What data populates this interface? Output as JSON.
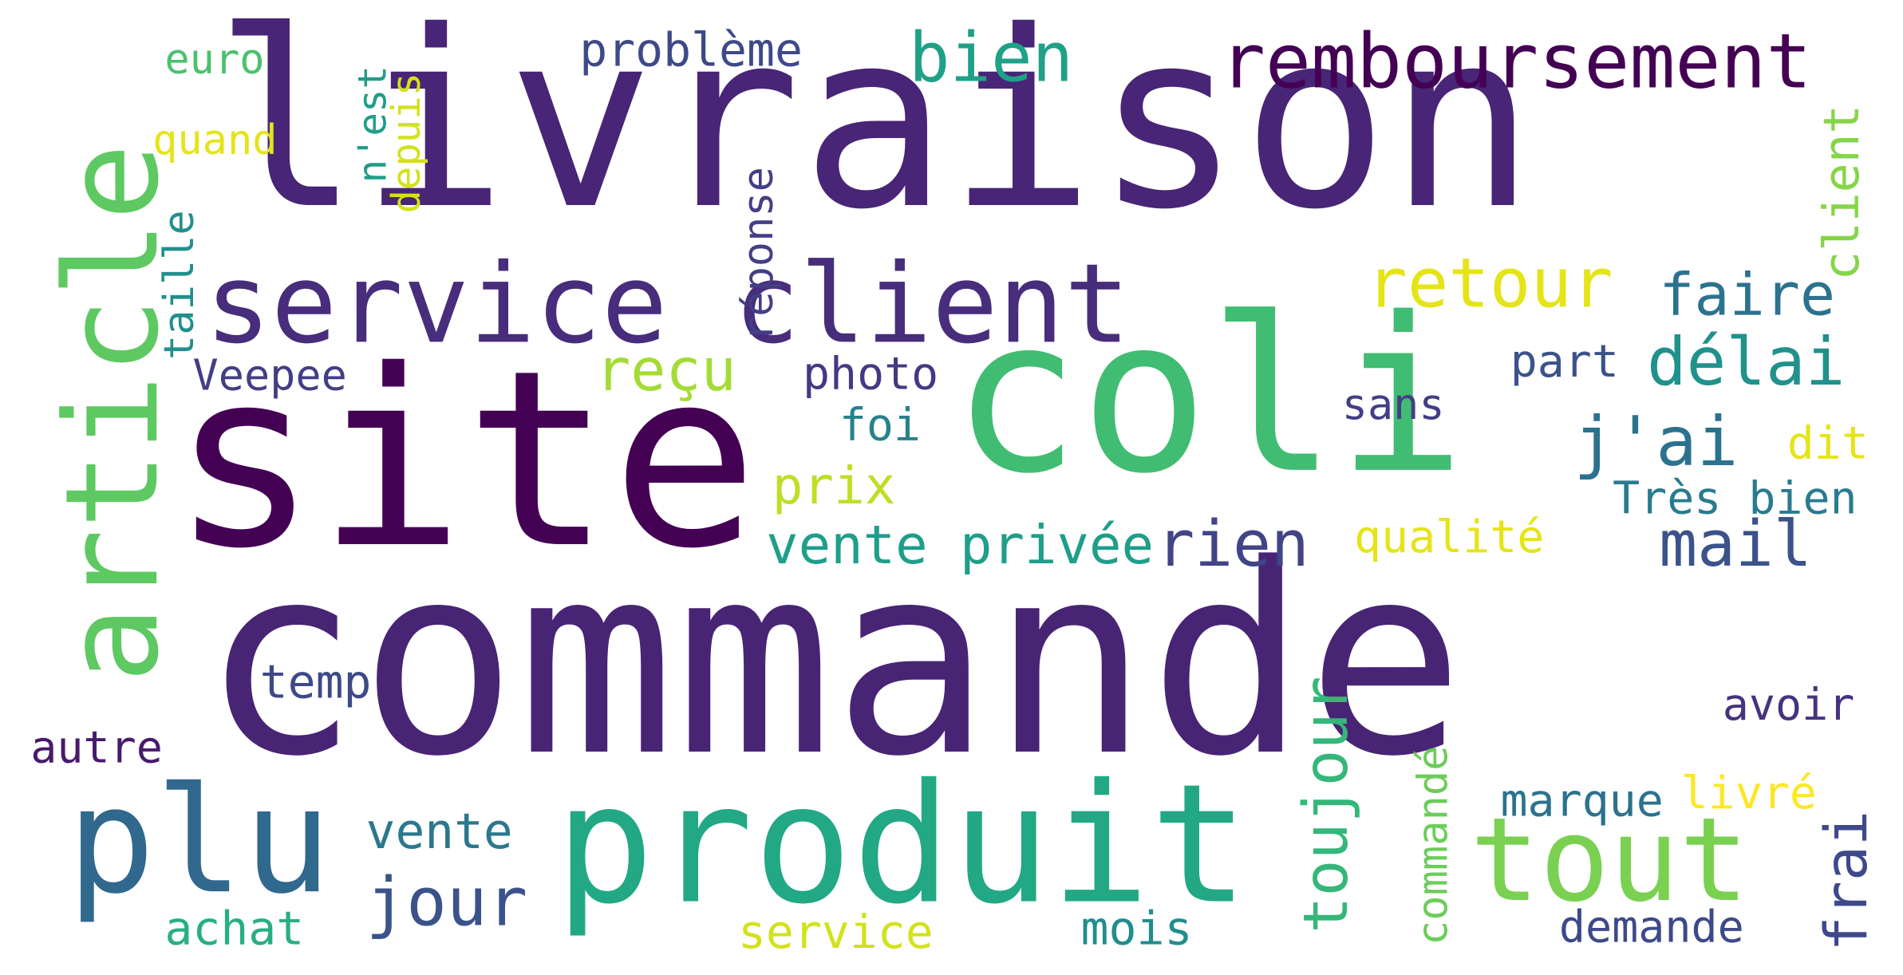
{
  "words": [
    {
      "id": "commande",
      "text": "commande",
      "color": "#482475"
    },
    {
      "id": "livraison",
      "text": "livraison",
      "color": "#482576"
    },
    {
      "id": "site",
      "text": "site",
      "color": "#440154"
    },
    {
      "id": "coli",
      "text": "coli",
      "color": "#40bd72"
    },
    {
      "id": "article",
      "text": "article",
      "color": "#5ec962"
    },
    {
      "id": "service-client",
      "text": "service client",
      "color": "#472d7b"
    },
    {
      "id": "produit",
      "text": "produit",
      "color": "#22a884"
    },
    {
      "id": "plu",
      "text": "plu",
      "color": "#31688e"
    },
    {
      "id": "tout",
      "text": "tout",
      "color": "#7ad151"
    },
    {
      "id": "remboursement",
      "text": "remboursement",
      "color": "#440154"
    },
    {
      "id": "retour",
      "text": "retour",
      "color": "#e5e419"
    },
    {
      "id": "recu",
      "text": "reçu",
      "color": "#a5db36"
    },
    {
      "id": "bien",
      "text": "bien",
      "color": "#1fa188"
    },
    {
      "id": "jour",
      "text": "jour",
      "color": "#3b528b"
    },
    {
      "id": "delai",
      "text": "délai",
      "color": "#21918c"
    },
    {
      "id": "jai",
      "text": "j'ai",
      "color": "#2c728e"
    },
    {
      "id": "faire",
      "text": "faire",
      "color": "#2c728e"
    },
    {
      "id": "rien",
      "text": "rien",
      "color": "#414487"
    },
    {
      "id": "mail",
      "text": "mail",
      "color": "#3b528b"
    },
    {
      "id": "toujour",
      "text": "toujour",
      "color": "#35b779"
    },
    {
      "id": "vente-privee",
      "text": "vente privée",
      "color": "#1f9e89"
    },
    {
      "id": "frai",
      "text": "frai",
      "color": "#3e4989"
    },
    {
      "id": "client",
      "text": "client",
      "color": "#86d549"
    },
    {
      "id": "probleme",
      "text": "problème",
      "color": "#3e4989"
    },
    {
      "id": "euro",
      "text": "euro",
      "color": "#4ac16d"
    },
    {
      "id": "quand",
      "text": "quand",
      "color": "#e5e419"
    },
    {
      "id": "nest",
      "text": "n'est",
      "color": "#1f9e89"
    },
    {
      "id": "depuis",
      "text": "depuis",
      "color": "#d2e21b"
    },
    {
      "id": "taille",
      "text": "taille",
      "color": "#218f8d"
    },
    {
      "id": "reponse",
      "text": "réponse",
      "color": "#433e85"
    },
    {
      "id": "veepee",
      "text": "Veepee",
      "color": "#433e85"
    },
    {
      "id": "photo",
      "text": "photo",
      "color": "#443983"
    },
    {
      "id": "foi",
      "text": "foi",
      "color": "#26828e"
    },
    {
      "id": "prix",
      "text": "prix",
      "color": "#bddf26"
    },
    {
      "id": "part",
      "text": "part",
      "color": "#3b528b"
    },
    {
      "id": "sans",
      "text": "sans",
      "color": "#433e85"
    },
    {
      "id": "dit",
      "text": "dit",
      "color": "#e5e419"
    },
    {
      "id": "tres-bien",
      "text": "Très bien",
      "color": "#297b8e"
    },
    {
      "id": "qualite",
      "text": "qualité",
      "color": "#e5e419"
    },
    {
      "id": "temp",
      "text": "temp",
      "color": "#3e4989"
    },
    {
      "id": "autre",
      "text": "autre",
      "color": "#481a6c"
    },
    {
      "id": "avoir",
      "text": "avoir",
      "color": "#46337f"
    },
    {
      "id": "commande-2",
      "text": "commandé",
      "color": "#6ccd5a"
    },
    {
      "id": "marque",
      "text": "marque",
      "color": "#2c728e"
    },
    {
      "id": "livre",
      "text": "livré",
      "color": "#fde725"
    },
    {
      "id": "vente",
      "text": "vente",
      "color": "#2a788e"
    },
    {
      "id": "achat",
      "text": "achat",
      "color": "#29af7f"
    },
    {
      "id": "service",
      "text": "service",
      "color": "#d2e21b"
    },
    {
      "id": "mois",
      "text": "mois",
      "color": "#228d8d"
    },
    {
      "id": "demande",
      "text": "demande",
      "color": "#3e4989"
    }
  ]
}
